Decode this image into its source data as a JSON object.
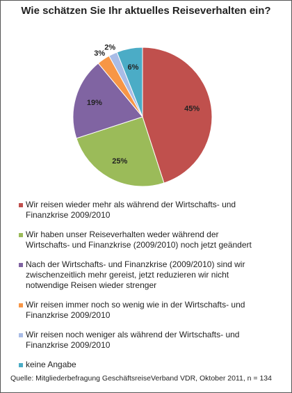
{
  "chart_data": {
    "type": "pie",
    "title": "Wie schätzen Sie Ihr aktuelles Reiseverhalten ein?",
    "categories": [
      "Wir reisen wieder mehr als während der Wirtschafts- und Finanzkrise 2009/2010",
      "Wir haben unser Reiseverhalten weder während der Wirtschafts- und Finanzkrise (2009/2010) noch jetzt geändert",
      "Nach der Wirtschafts- und Finanzkrise (2009/2010) sind wir zwischenzeitlich mehr gereist, jetzt reduzieren wir nicht notwendige Reisen wieder strenger",
      "Wir reisen immer noch so wenig wie in der Wirtschafts- und Finanzkrise 2009/2010",
      "Wir reisen noch weniger als während der Wirtschafts- und Finanzkrise 2009/2010",
      "keine Angabe"
    ],
    "values": [
      45,
      25,
      19,
      3,
      2,
      6
    ],
    "value_labels": [
      "45%",
      "25%",
      "19%",
      "3%",
      "2%",
      "6%"
    ],
    "colors": [
      "#c0504d",
      "#9bbb59",
      "#8064a2",
      "#f79646",
      "#a9bce6",
      "#4bacc6"
    ],
    "source": "Quelle: Mitgliederbefragung GeschäftsreiseVerband VDR, Oktober 2011, n = 134"
  }
}
